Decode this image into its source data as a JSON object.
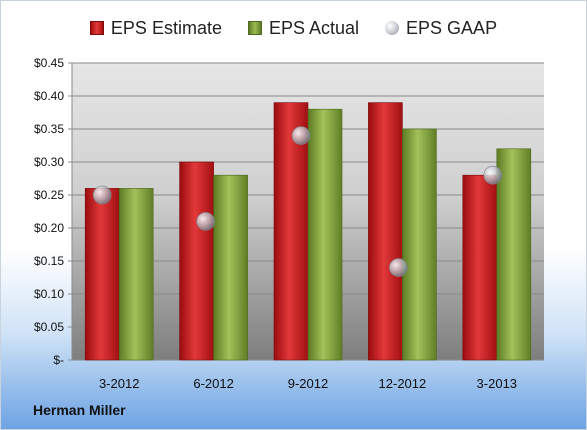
{
  "company": "Herman Miller",
  "colors": {
    "estimate": "#c8191c",
    "actual": "#86a83f",
    "gaap": "#b9bdc5"
  },
  "chart_data": {
    "type": "bar",
    "categories": [
      "3-2012",
      "6-2012",
      "9-2012",
      "12-2012",
      "3-2013"
    ],
    "series": [
      {
        "name": "EPS Estimate",
        "type": "bar",
        "values": [
          0.26,
          0.3,
          0.39,
          0.39,
          0.28
        ]
      },
      {
        "name": "EPS Actual",
        "type": "bar",
        "values": [
          0.26,
          0.28,
          0.38,
          0.35,
          0.32
        ]
      },
      {
        "name": "EPS GAAP",
        "type": "scatter",
        "values": [
          0.25,
          0.21,
          0.34,
          0.14,
          0.28
        ]
      }
    ],
    "ylim": [
      0,
      0.45
    ],
    "yticks": [
      {
        "value": 0.45,
        "label": "$0.45"
      },
      {
        "value": 0.4,
        "label": "$0.40"
      },
      {
        "value": 0.35,
        "label": "$0.35"
      },
      {
        "value": 0.3,
        "label": "$0.30"
      },
      {
        "value": 0.25,
        "label": "$0.25"
      },
      {
        "value": 0.2,
        "label": "$0.20"
      },
      {
        "value": 0.15,
        "label": "$0.15"
      },
      {
        "value": 0.1,
        "label": "$0.10"
      },
      {
        "value": 0.05,
        "label": "$0.05"
      },
      {
        "value": 0,
        "label": "$-"
      }
    ],
    "grid": true,
    "legend": "top"
  }
}
